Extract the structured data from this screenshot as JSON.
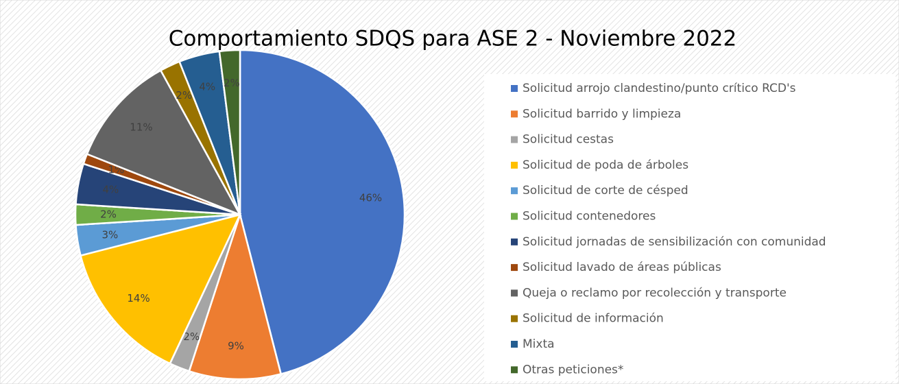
{
  "chart_data": {
    "type": "pie",
    "title": "Comportamiento SDQS para ASE 2 - Noviembre 2022",
    "categories": [
      "Solicitud arrojo clandestino/punto crítico RCD's",
      "Solicitud barrido y limpieza",
      "Solicitud cestas",
      "Solicitud de poda de árboles",
      "Solicitud de corte de césped",
      "Solicitud contenedores",
      "Solicitud jornadas de sensibilización con comunidad",
      "Solicitud lavado de áreas públicas",
      "Queja o reclamo por recolección y transporte",
      "Solicitud de información",
      "Mixta",
      "Otras peticiones*"
    ],
    "values": [
      46,
      9,
      2,
      14,
      3,
      2,
      4,
      1,
      11,
      2,
      4,
      2
    ],
    "value_labels": [
      "46%",
      "9%",
      "2%",
      "14%",
      "3%",
      "2%",
      "4%",
      "1%",
      "11%",
      "2%",
      "4%",
      "2%"
    ],
    "colors": [
      "#4472c4",
      "#ed7d31",
      "#a5a5a5",
      "#ffc000",
      "#5b9bd5",
      "#70ad47",
      "#264478",
      "#9e480e",
      "#636363",
      "#997300",
      "#255e91",
      "#43682b"
    ],
    "legend": "right"
  }
}
